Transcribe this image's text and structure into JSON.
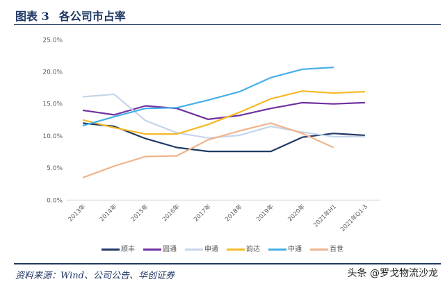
{
  "header": {
    "figure_no": "图表 3",
    "title": "各公司市占率"
  },
  "source": "资料来源：Wind、公司公告、华创证券",
  "watermark": "头条 @罗戈物流沙龙",
  "chart_data": {
    "type": "line",
    "title": "",
    "categories": [
      "2013年",
      "2014年",
      "2015年",
      "2016年",
      "2017年",
      "2018年",
      "2019年",
      "2020年",
      "2021年H1",
      "2021年Q1-3"
    ],
    "yticks": [
      "0.0%",
      "5.0%",
      "10.0%",
      "15.0%",
      "20.0%",
      "25.0%"
    ],
    "ylim": [
      0,
      25
    ],
    "grid": false,
    "legend": "bottom",
    "series": [
      {
        "name": "顺丰",
        "color": "#1f3864",
        "values": [
          12.0,
          11.5,
          9.6,
          8.2,
          7.6,
          7.6,
          7.6,
          9.8,
          10.4,
          10.1
        ]
      },
      {
        "name": "圆通",
        "color": "#7030a0",
        "values": [
          14.0,
          13.3,
          14.7,
          14.3,
          12.6,
          13.2,
          14.3,
          15.2,
          15.0,
          15.2
        ]
      },
      {
        "name": "申通",
        "color": "#c5d4ea",
        "values": [
          16.1,
          16.5,
          12.4,
          10.5,
          9.7,
          10.1,
          11.5,
          10.6,
          9.9,
          9.9
        ]
      },
      {
        "name": "韵达",
        "color": "#f5b925",
        "values": [
          12.5,
          11.3,
          10.3,
          10.3,
          11.8,
          13.7,
          15.8,
          17.0,
          16.7,
          16.9
        ]
      },
      {
        "name": "中通",
        "color": "#45aee8",
        "values": [
          11.6,
          13.0,
          14.3,
          14.4,
          15.6,
          16.9,
          19.1,
          20.4,
          20.7,
          null
        ]
      },
      {
        "name": "百世",
        "color": "#f0b48c",
        "values": [
          3.5,
          5.3,
          6.8,
          6.9,
          9.4,
          10.8,
          12.0,
          10.4,
          8.2,
          null
        ]
      }
    ]
  }
}
